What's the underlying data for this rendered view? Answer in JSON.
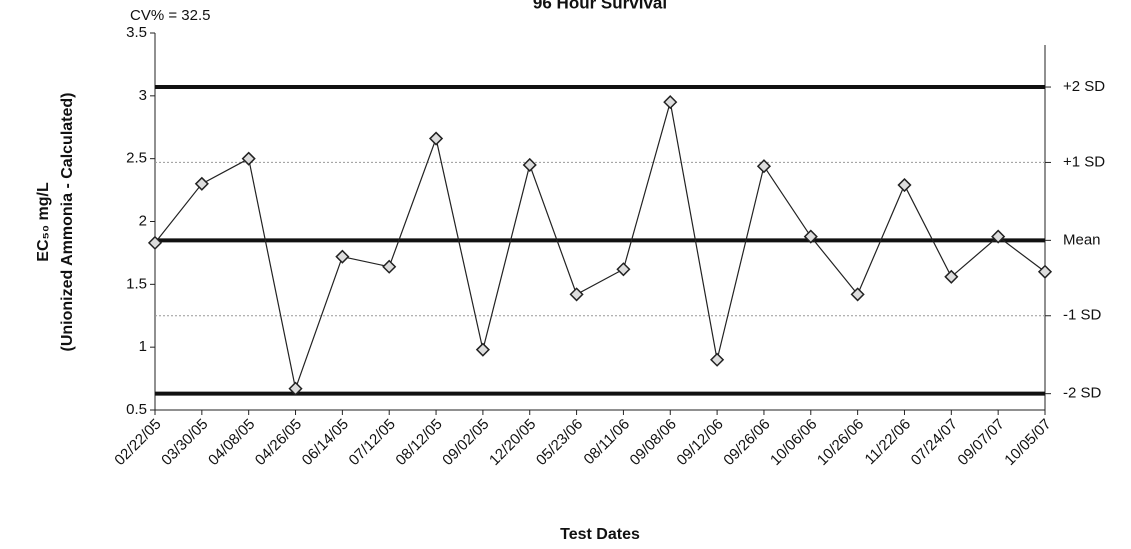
{
  "chart_data": {
    "type": "line",
    "title": "96 Hour Survival",
    "annotation": "CV% = 32.5",
    "x_label": "Test Dates",
    "y_label": [
      "EC₅₀ mg/L",
      "(Unionized Ammonia - Calculated)"
    ],
    "categories": [
      "02/22/05",
      "03/30/05",
      "04/08/05",
      "04/26/05",
      "06/14/05",
      "07/12/05",
      "08/12/05",
      "09/02/05",
      "12/20/05",
      "05/23/06",
      "08/11/06",
      "09/08/06",
      "09/12/06",
      "09/26/06",
      "10/06/06",
      "10/26/06",
      "11/22/06",
      "07/24/07",
      "09/07/07",
      "10/05/07"
    ],
    "series": [
      {
        "color": "#222222",
        "values": [
          1.83,
          2.3,
          2.5,
          0.67,
          1.72,
          1.64,
          2.66,
          0.98,
          2.45,
          1.42,
          1.62,
          2.95,
          0.9,
          2.44,
          1.88,
          1.42,
          2.29,
          1.56,
          1.88,
          1.6
        ]
      }
    ],
    "reference_lines": [
      {
        "label": "+2 SD",
        "value": 3.07,
        "style": "thick"
      },
      {
        "label": "+1 SD",
        "value": 2.47,
        "style": "thin"
      },
      {
        "label": "Mean",
        "value": 1.85,
        "style": "thick"
      },
      {
        "label": "-1 SD",
        "value": 1.25,
        "style": "thin"
      },
      {
        "label": "-2 SD",
        "value": 0.63,
        "style": "thick"
      }
    ],
    "ylim": [
      0.5,
      3.5
    ],
    "yticks": [
      0.5,
      1,
      1.5,
      2,
      2.5,
      3,
      3.5
    ]
  }
}
